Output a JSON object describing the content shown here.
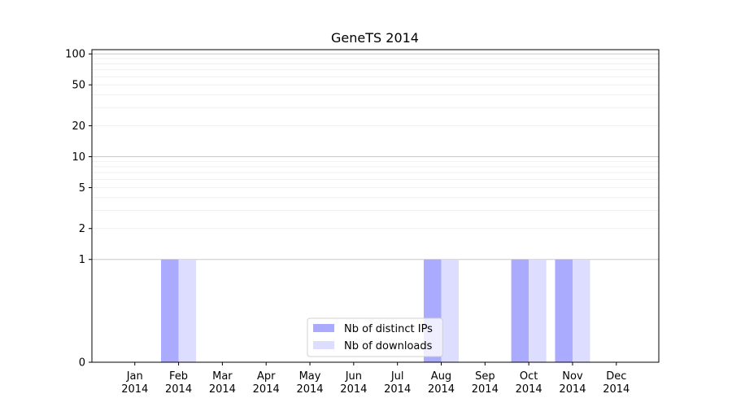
{
  "chart_data": {
    "type": "bar",
    "title": "GeneTS 2014",
    "xlabel": "",
    "ylabel": "",
    "categories": [
      [
        "Jan",
        "2014"
      ],
      [
        "Feb",
        "2014"
      ],
      [
        "Mar",
        "2014"
      ],
      [
        "Apr",
        "2014"
      ],
      [
        "May",
        "2014"
      ],
      [
        "Jun",
        "2014"
      ],
      [
        "Jul",
        "2014"
      ],
      [
        "Aug",
        "2014"
      ],
      [
        "Sep",
        "2014"
      ],
      [
        "Oct",
        "2014"
      ],
      [
        "Nov",
        "2014"
      ],
      [
        "Dec",
        "2014"
      ]
    ],
    "series": [
      {
        "name": "Nb of distinct IPs",
        "color": "#aaaaff",
        "values": [
          0,
          1,
          0,
          0,
          0,
          0,
          0,
          1,
          0,
          1,
          1,
          0
        ]
      },
      {
        "name": "Nb of downloads",
        "color": "#ddddff",
        "values": [
          0,
          1,
          0,
          0,
          0,
          0,
          0,
          1,
          0,
          1,
          1,
          0
        ]
      }
    ],
    "yscale": "symlog",
    "ylim": [
      0,
      110
    ],
    "yticks": [
      0,
      1,
      2,
      5,
      10,
      20,
      50,
      100
    ],
    "grid": true,
    "legend_position": "lower-center"
  }
}
